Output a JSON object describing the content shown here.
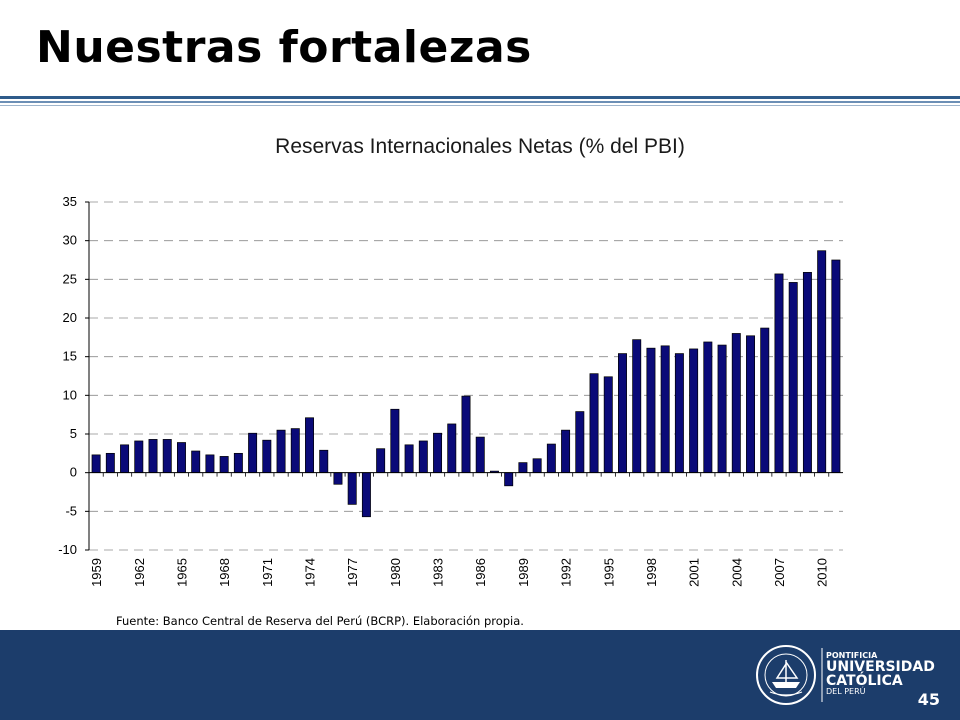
{
  "slide": {
    "title": "Nuestras fortalezas",
    "page_number": "45",
    "source": "Fuente: Banco Central de Reserva del Perú (BCRP). Elaboración propia.",
    "logo": {
      "line1": "PONTIFICIA",
      "line2": "UNIVERSIDAD",
      "line3": "CATÓLICA",
      "line4": "DEL PERÚ"
    },
    "colors": {
      "footer": "#1c3d6b",
      "bar_fill": "#0a0a78",
      "title_rule": "#2f5b8a"
    }
  },
  "chart_data": {
    "type": "bar",
    "title": "Reservas Internacionales Netas (% del PBI)",
    "xlabel": "",
    "ylabel": "",
    "ylim": [
      -10,
      35
    ],
    "yticks": [
      35,
      30,
      25,
      20,
      15,
      10,
      5,
      0,
      -5,
      -10
    ],
    "grid": true,
    "legend": "none",
    "x": [
      1959,
      1960,
      1961,
      1962,
      1963,
      1964,
      1965,
      1966,
      1967,
      1968,
      1969,
      1970,
      1971,
      1972,
      1973,
      1974,
      1975,
      1976,
      1977,
      1978,
      1979,
      1980,
      1981,
      1982,
      1983,
      1984,
      1985,
      1986,
      1987,
      1988,
      1989,
      1990,
      1991,
      1992,
      1993,
      1994,
      1995,
      1996,
      1997,
      1998,
      1999,
      2000,
      2001,
      2002,
      2003,
      2004,
      2005,
      2006,
      2007,
      2008,
      2009,
      2010,
      2011
    ],
    "xtick_labels": [
      "1959",
      "1962",
      "1965",
      "1968",
      "1971",
      "1974",
      "1977",
      "1980",
      "1983",
      "1986",
      "1989",
      "1992",
      "1995",
      "1998",
      "2001",
      "2004",
      "2007",
      "2010"
    ],
    "values": [
      2.3,
      2.5,
      3.6,
      4.1,
      4.3,
      4.3,
      3.9,
      2.8,
      2.3,
      2.1,
      2.5,
      5.1,
      4.2,
      5.5,
      5.7,
      7.1,
      2.9,
      -1.5,
      -4.1,
      -5.7,
      3.1,
      8.2,
      3.6,
      4.1,
      5.1,
      6.3,
      9.9,
      4.6,
      0.2,
      -1.7,
      1.3,
      1.8,
      3.7,
      5.5,
      7.9,
      12.8,
      12.4,
      15.4,
      17.2,
      16.1,
      16.4,
      15.4,
      16.0,
      16.9,
      16.5,
      18.0,
      17.7,
      18.7,
      25.7,
      24.6,
      25.9,
      28.7,
      27.5
    ]
  }
}
